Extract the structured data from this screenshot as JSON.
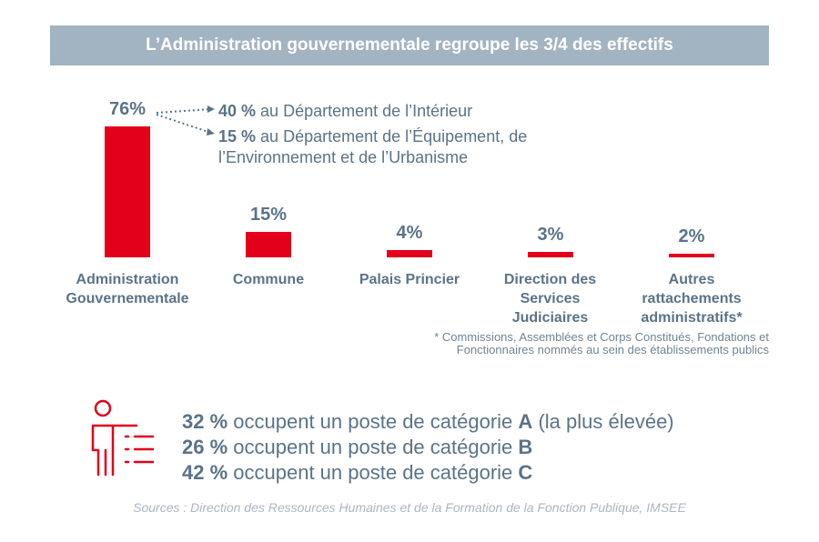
{
  "chart_data": {
    "type": "bar",
    "title": "L’Administration gouvernementale regroupe les 3/4 des effectifs",
    "categories": [
      "Administration Gouvernementale",
      "Commune",
      "Palais Princier",
      "Direction des Services Judiciaires",
      "Autres rattachements administratifs*"
    ],
    "values": [
      76,
      15,
      4,
      3,
      2
    ],
    "value_labels": [
      "76%",
      "15%",
      "4%",
      "3%",
      "2%"
    ],
    "color": "#e2001a",
    "annotations": [
      {
        "highlight": "40 %",
        "text": "au Département de l’Intérieur"
      },
      {
        "highlight": "15 %",
        "text": "au Département de l’Équipement, de l’Environnement et de l’Urbanisme"
      }
    ],
    "footnote": "* Commissions, Assemblées et Corps Constitués, Fondations et Fonctionnaires nommés au sein des établissements publics",
    "categories_breakdown": [
      {
        "highlight": "32 %",
        "text": "occupent un poste de catégorie",
        "grade": "A",
        "note": "(la plus élevée)"
      },
      {
        "highlight": "26 %",
        "text": "occupent un poste de catégorie",
        "grade": "B"
      },
      {
        "highlight": "42 %",
        "text": "occupent un poste de catégorie",
        "grade": "C"
      }
    ],
    "source": "Sources : Direction des Ressources Humaines et de la Formation de la Fonction Publique, IMSEE"
  }
}
